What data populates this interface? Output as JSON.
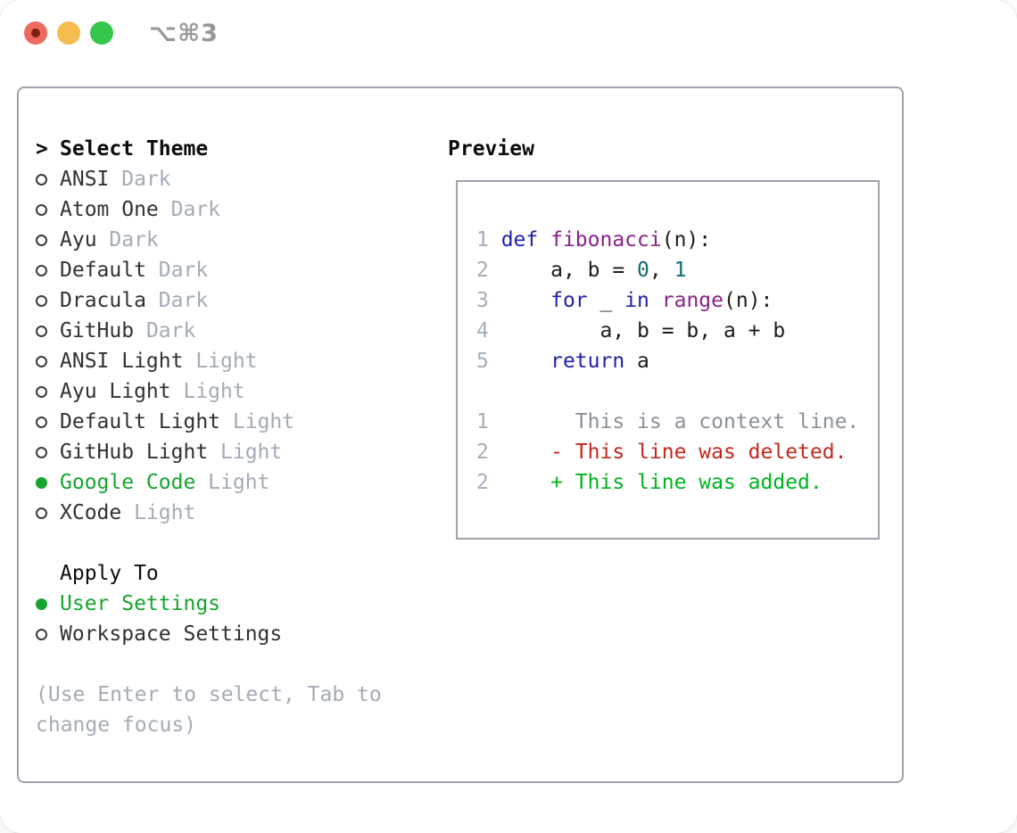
{
  "window": {
    "shortcut_label": "⌥⌘3",
    "traffic_lights": [
      "close",
      "minimize",
      "zoom"
    ]
  },
  "theme_menu": {
    "prompt": ">",
    "header": "Select Theme",
    "items": [
      {
        "name": "ANSI",
        "tag": "Dark",
        "selected": false
      },
      {
        "name": "Atom One",
        "tag": "Dark",
        "selected": false
      },
      {
        "name": "Ayu",
        "tag": "Dark",
        "selected": false
      },
      {
        "name": "Default",
        "tag": "Dark",
        "selected": false
      },
      {
        "name": "Dracula",
        "tag": "Dark",
        "selected": false
      },
      {
        "name": "GitHub",
        "tag": "Dark",
        "selected": false
      },
      {
        "name": "ANSI Light",
        "tag": "Light",
        "selected": false
      },
      {
        "name": "Ayu Light",
        "tag": "Light",
        "selected": false
      },
      {
        "name": "Default Light",
        "tag": "Light",
        "selected": false
      },
      {
        "name": "GitHub Light",
        "tag": "Light",
        "selected": false
      },
      {
        "name": "Google Code",
        "tag": "Light",
        "selected": true
      },
      {
        "name": "XCode",
        "tag": "Light",
        "selected": false
      }
    ]
  },
  "apply_to": {
    "header": "Apply To",
    "items": [
      {
        "name": "User Settings",
        "selected": true
      },
      {
        "name": "Workspace Settings",
        "selected": false
      }
    ]
  },
  "hint": "(Use Enter to select, Tab to change focus)",
  "preview": {
    "title": "Preview",
    "code_lines": [
      {
        "num": "1",
        "segments": [
          {
            "text": "def ",
            "type": "keyword"
          },
          {
            "text": "fibonacci",
            "type": "function"
          },
          {
            "text": "(n):",
            "type": "plain"
          }
        ]
      },
      {
        "num": "2",
        "segments": [
          {
            "text": "    a, b = ",
            "type": "plain"
          },
          {
            "text": "0",
            "type": "number"
          },
          {
            "text": ", ",
            "type": "plain"
          },
          {
            "text": "1",
            "type": "number"
          }
        ]
      },
      {
        "num": "3",
        "segments": [
          {
            "text": "    ",
            "type": "plain"
          },
          {
            "text": "for",
            "type": "keyword"
          },
          {
            "text": " _ ",
            "type": "plain"
          },
          {
            "text": "in",
            "type": "keyword"
          },
          {
            "text": " ",
            "type": "plain"
          },
          {
            "text": "range",
            "type": "function"
          },
          {
            "text": "(n):",
            "type": "plain"
          }
        ]
      },
      {
        "num": "4",
        "segments": [
          {
            "text": "        a, b = b, a + b",
            "type": "plain"
          }
        ]
      },
      {
        "num": "5",
        "segments": [
          {
            "text": "    ",
            "type": "plain"
          },
          {
            "text": "return",
            "type": "keyword"
          },
          {
            "text": " a",
            "type": "plain"
          }
        ]
      }
    ],
    "diff_lines": [
      {
        "num": "1",
        "prefix": "       ",
        "text": "This is a context line.",
        "type": "context"
      },
      {
        "num": "2",
        "prefix": "     - ",
        "text": "This line was deleted.",
        "type": "deleted"
      },
      {
        "num": "2",
        "prefix": "     + ",
        "text": "This line was added.",
        "type": "added"
      }
    ]
  },
  "colors": {
    "selection_green": "#17a42e",
    "keyword_blue": "#2222aa",
    "function_purple": "#882288",
    "number_teal": "#0e6c6c",
    "deleted_red": "#c5281c",
    "added_green": "#00b41f",
    "context_gray": "#8b9199",
    "line_number_gray": "#a4aeb9",
    "tag_gray": "#a4abb6",
    "border_gray": "#9ca3ad",
    "traffic_red": "#ee6a5f",
    "traffic_yellow": "#f5bd4f",
    "traffic_green": "#34c74b"
  }
}
